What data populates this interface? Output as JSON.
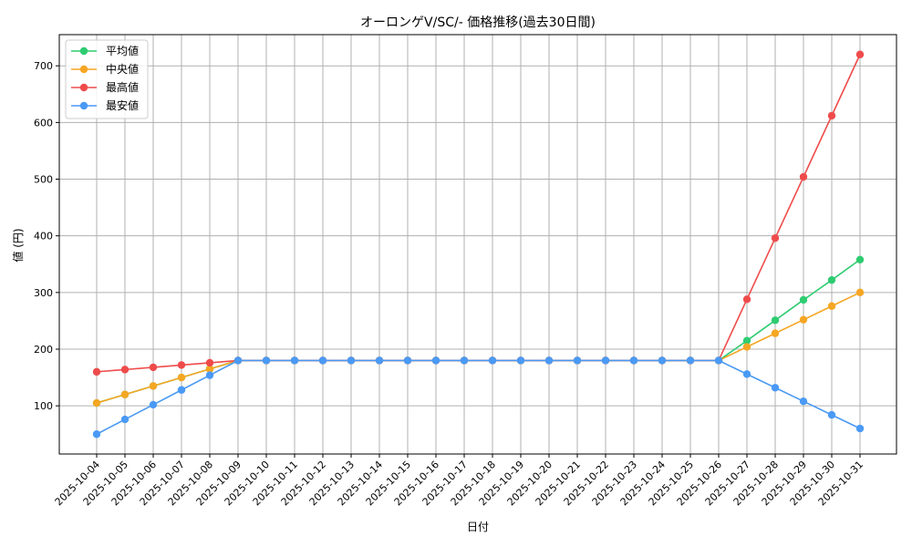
{
  "chart_data": {
    "type": "line",
    "title": "オーロンゲV/SC/- 価格推移(過去30日間)",
    "xlabel": "日付",
    "ylabel": "値 (円)",
    "ylim": [
      15,
      755
    ],
    "yticks": [
      100,
      200,
      300,
      400,
      500,
      600,
      700
    ],
    "grid": true,
    "legend_position": "top-left",
    "categories": [
      "2025-10-04",
      "2025-10-05",
      "2025-10-06",
      "2025-10-07",
      "2025-10-08",
      "2025-10-09",
      "2025-10-10",
      "2025-10-11",
      "2025-10-12",
      "2025-10-13",
      "2025-10-14",
      "2025-10-15",
      "2025-10-16",
      "2025-10-17",
      "2025-10-18",
      "2025-10-19",
      "2025-10-20",
      "2025-10-21",
      "2025-10-22",
      "2025-10-23",
      "2025-10-24",
      "2025-10-25",
      "2025-10-26",
      "2025-10-27",
      "2025-10-28",
      "2025-10-29",
      "2025-10-30",
      "2025-10-31"
    ],
    "series": [
      {
        "name": "平均値",
        "color": "#2ecc71",
        "values": [
          105,
          120,
          135,
          150,
          165,
          180,
          180,
          180,
          180,
          180,
          180,
          180,
          180,
          180,
          180,
          180,
          180,
          180,
          180,
          180,
          180,
          180,
          180,
          215,
          251,
          287,
          322,
          358
        ]
      },
      {
        "name": "中央値",
        "color": "#f5a623",
        "values": [
          105,
          120,
          135,
          150,
          165,
          180,
          180,
          180,
          180,
          180,
          180,
          180,
          180,
          180,
          180,
          180,
          180,
          180,
          180,
          180,
          180,
          180,
          180,
          204,
          228,
          252,
          276,
          300
        ]
      },
      {
        "name": "最高値",
        "color": "#ef4b4b",
        "values": [
          160,
          164,
          168,
          172,
          176,
          180,
          180,
          180,
          180,
          180,
          180,
          180,
          180,
          180,
          180,
          180,
          180,
          180,
          180,
          180,
          180,
          180,
          180,
          288,
          396,
          504,
          612,
          720
        ]
      },
      {
        "name": "最安値",
        "color": "#4a9af5",
        "values": [
          50,
          76,
          102,
          128,
          154,
          180,
          180,
          180,
          180,
          180,
          180,
          180,
          180,
          180,
          180,
          180,
          180,
          180,
          180,
          180,
          180,
          180,
          180,
          156,
          132,
          108,
          84,
          60
        ]
      }
    ]
  }
}
